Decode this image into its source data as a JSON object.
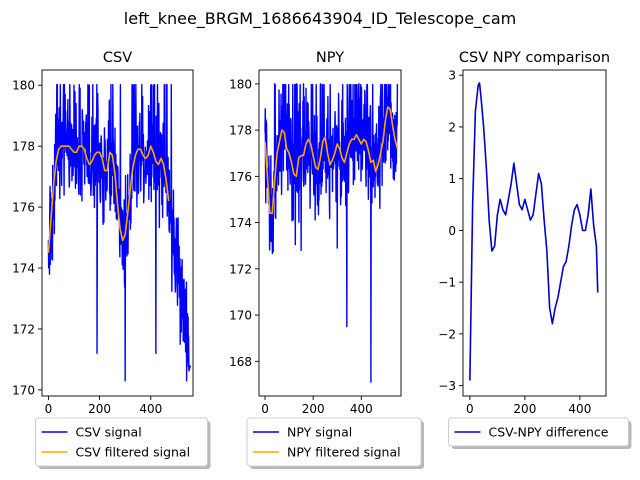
{
  "figure": {
    "suptitle": "left_knee_BRGM_1686643904_ID_Telescope_cam"
  },
  "chart_data": [
    {
      "type": "line",
      "title": "CSV",
      "xlim": [
        -25,
        565
      ],
      "ylim": [
        169.8,
        180.5
      ],
      "xticks": [
        0,
        200,
        400
      ],
      "yticks": [
        170,
        172,
        174,
        176,
        178,
        180
      ],
      "legend_placement": "below",
      "series": [
        {
          "name": "CSV signal",
          "color": "#0000ff",
          "style": "noisy",
          "x": [
            0,
            10,
            20,
            30,
            40,
            50,
            60,
            70,
            80,
            90,
            100,
            110,
            120,
            130,
            140,
            150,
            160,
            170,
            180,
            190,
            200,
            210,
            220,
            230,
            240,
            250,
            260,
            270,
            280,
            290,
            300,
            310,
            320,
            330,
            340,
            350,
            360,
            370,
            380,
            390,
            400,
            410,
            420,
            430,
            440,
            450,
            460,
            470,
            480,
            490,
            500,
            510,
            520,
            530,
            540,
            550
          ],
          "y": [
            174.5,
            175.6,
            176.7,
            177.5,
            177.9,
            178.0,
            178.0,
            178.0,
            178.0,
            177.9,
            177.8,
            177.8,
            178.0,
            178.0,
            177.9,
            177.6,
            177.4,
            177.5,
            177.7,
            177.8,
            177.8,
            177.6,
            177.2,
            177.2,
            177.8,
            177.7,
            177.1,
            176.1,
            175.3,
            174.9,
            175.1,
            175.8,
            176.6,
            177.3,
            177.7,
            177.9,
            177.9,
            177.7,
            177.6,
            177.7,
            178.0,
            177.8,
            177.5,
            177.4,
            177.6,
            177.4,
            176.9,
            176.2,
            175.6,
            174.8,
            174.2,
            173.8,
            173.4,
            173.0,
            172.4,
            171.5
          ],
          "max_points": [
            [
              100,
              180
            ],
            [
              160,
              180
            ],
            [
              300,
              180
            ],
            [
              330,
              180
            ],
            [
              400,
              180
            ],
            [
              410,
              180
            ]
          ],
          "min_points": [
            [
              190,
              171.2
            ],
            [
              300,
              170.3
            ],
            [
              420,
              171.2
            ],
            [
              515,
              171.5
            ],
            [
              540,
              170.3
            ],
            [
              555,
              170.8
            ]
          ]
        },
        {
          "name": "CSV filtered signal",
          "color": "#ffa500",
          "style": "smooth",
          "x": [
            0,
            10,
            20,
            30,
            40,
            50,
            60,
            70,
            80,
            90,
            100,
            110,
            120,
            130,
            140,
            150,
            160,
            170,
            180,
            190,
            200,
            210,
            220,
            230,
            240,
            250,
            260,
            270,
            280,
            290,
            300,
            310,
            320,
            330,
            340,
            350,
            360,
            370,
            380,
            390,
            400,
            410,
            420,
            430,
            440,
            450,
            460,
            470
          ],
          "y": [
            174.5,
            175.6,
            176.7,
            177.5,
            177.9,
            178.0,
            178.0,
            178.0,
            178.0,
            177.9,
            177.8,
            177.8,
            178.0,
            178.0,
            177.9,
            177.6,
            177.4,
            177.5,
            177.7,
            177.8,
            177.8,
            177.6,
            177.2,
            177.2,
            177.8,
            177.7,
            177.1,
            176.1,
            175.3,
            174.9,
            175.1,
            175.8,
            176.6,
            177.3,
            177.7,
            177.9,
            177.9,
            177.7,
            177.6,
            177.7,
            178.0,
            177.8,
            177.5,
            177.4,
            177.6,
            177.4,
            176.9,
            176.2
          ]
        }
      ]
    },
    {
      "type": "line",
      "title": "NPY",
      "xlim": [
        -25,
        565
      ],
      "ylim": [
        166.5,
        180.6
      ],
      "xticks": [
        0,
        200,
        400
      ],
      "yticks": [
        168,
        170,
        172,
        174,
        176,
        178,
        180
      ],
      "legend_placement": "below",
      "series": [
        {
          "name": "NPY signal",
          "color": "#0000ff",
          "style": "noisy",
          "x": [
            0,
            10,
            20,
            30,
            40,
            50,
            60,
            70,
            80,
            90,
            100,
            110,
            120,
            130,
            140,
            150,
            160,
            170,
            180,
            190,
            200,
            210,
            220,
            230,
            240,
            250,
            260,
            270,
            280,
            290,
            300,
            310,
            320,
            330,
            340,
            350,
            360,
            370,
            380,
            390,
            400,
            410,
            420,
            430,
            440,
            450,
            460,
            470,
            480,
            490,
            500,
            510,
            520,
            530,
            540,
            550
          ],
          "y": [
            177.5,
            176.0,
            174.4,
            174.4,
            175.8,
            177.0,
            177.5,
            178.0,
            177.9,
            177.2,
            177.0,
            176.6,
            176.1,
            176.0,
            176.8,
            176.9,
            176.9,
            177.4,
            177.6,
            177.4,
            176.9,
            176.4,
            176.3,
            176.8,
            177.5,
            177.7,
            177.0,
            176.5,
            176.7,
            177.0,
            177.4,
            177.2,
            176.8,
            176.6,
            177.0,
            177.4,
            177.6,
            177.6,
            177.8,
            177.6,
            177.4,
            177.6,
            177.5,
            177.1,
            176.6,
            176.7,
            176.2,
            176.5,
            177.0,
            177.5,
            178.4,
            179.0,
            178.9,
            178.2,
            177.6,
            177.2
          ],
          "max_points": [
            [
              40,
              180
            ],
            [
              130,
              180
            ],
            [
              160,
              180
            ],
            [
              230,
              180
            ],
            [
              390,
              180
            ],
            [
              550,
              180
            ]
          ],
          "min_points": [
            [
              20,
              173.7
            ],
            [
              30,
              173.2
            ],
            [
              150,
              172.8
            ],
            [
              300,
              172.9
            ],
            [
              340,
              169.5
            ],
            [
              440,
              167.1
            ]
          ]
        },
        {
          "name": "NPY filtered signal",
          "color": "#ffa500",
          "style": "smooth",
          "x": [
            0,
            10,
            20,
            30,
            40,
            50,
            60,
            70,
            80,
            90,
            100,
            110,
            120,
            130,
            140,
            150,
            160,
            170,
            180,
            190,
            200,
            210,
            220,
            230,
            240,
            250,
            260,
            270,
            280,
            290,
            300,
            310,
            320,
            330,
            340,
            350,
            360,
            370,
            380,
            390,
            400,
            410,
            420,
            430,
            440,
            450,
            460,
            470,
            480,
            490,
            500,
            510,
            520,
            530,
            540,
            550
          ],
          "y": [
            177.5,
            176.0,
            174.4,
            174.4,
            175.8,
            177.0,
            177.5,
            178.0,
            177.9,
            177.2,
            177.0,
            176.6,
            176.1,
            176.0,
            176.8,
            176.9,
            176.9,
            177.4,
            177.6,
            177.4,
            176.9,
            176.4,
            176.3,
            176.8,
            177.5,
            177.7,
            177.0,
            176.5,
            176.7,
            177.0,
            177.4,
            177.2,
            176.8,
            176.6,
            177.0,
            177.4,
            177.6,
            177.6,
            177.8,
            177.6,
            177.4,
            177.6,
            177.5,
            177.1,
            176.6,
            176.7,
            176.2,
            176.5,
            177.0,
            177.5,
            178.4,
            179.0,
            178.9,
            178.2,
            177.6,
            177.2
          ]
        }
      ]
    },
    {
      "type": "line",
      "title": "CSV NPY comparison",
      "xlim": [
        -25,
        495
      ],
      "ylim": [
        -3.2,
        3.1
      ],
      "xticks": [
        0,
        200,
        400
      ],
      "yticks": [
        -3,
        -2,
        -1,
        0,
        1,
        2,
        3
      ],
      "legend_placement": "below",
      "series": [
        {
          "name": "CSV-NPY difference",
          "color": "#0000cc",
          "style": "smooth",
          "x": [
            0,
            5,
            10,
            20,
            30,
            35,
            40,
            50,
            60,
            70,
            80,
            90,
            100,
            110,
            120,
            130,
            140,
            150,
            160,
            170,
            180,
            190,
            200,
            210,
            220,
            230,
            240,
            250,
            260,
            270,
            280,
            290,
            300,
            310,
            320,
            330,
            340,
            350,
            360,
            370,
            380,
            390,
            400,
            410,
            420,
            430,
            440,
            450,
            460,
            465
          ],
          "y": [
            -2.9,
            -1.2,
            0.5,
            2.3,
            2.8,
            2.85,
            2.6,
            2.0,
            1.2,
            0.2,
            -0.4,
            -0.3,
            0.3,
            0.6,
            0.4,
            0.3,
            0.6,
            0.9,
            1.3,
            0.9,
            0.5,
            0.4,
            0.6,
            0.4,
            0.2,
            0.3,
            0.7,
            1.1,
            0.9,
            0.2,
            -0.4,
            -1.5,
            -1.8,
            -1.5,
            -1.3,
            -1.0,
            -0.7,
            -0.6,
            -0.3,
            0.1,
            0.4,
            0.5,
            0.3,
            0.0,
            0.0,
            0.3,
            0.8,
            0.1,
            -0.3,
            -1.2
          ]
        }
      ]
    }
  ]
}
